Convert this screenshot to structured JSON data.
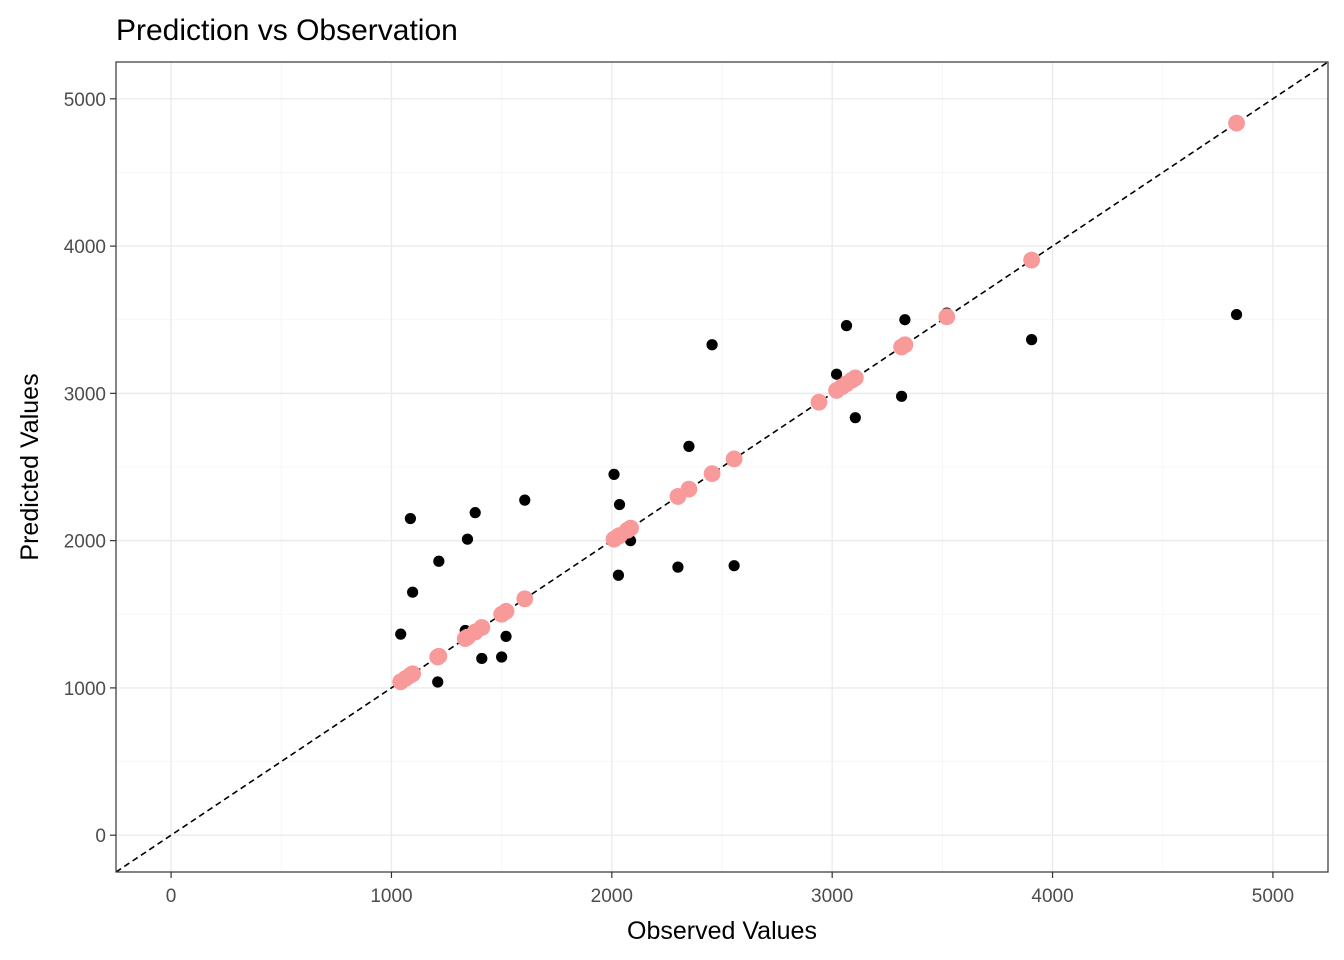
{
  "chart_data": {
    "type": "scatter",
    "title": "Prediction vs Observation",
    "xlabel": "Observed Values",
    "ylabel": "Predicted Values",
    "xlim": [
      -250,
      5250
    ],
    "ylim": [
      -250,
      5250
    ],
    "x_ticks": [
      0,
      1000,
      2000,
      3000,
      4000,
      5000
    ],
    "y_ticks": [
      0,
      1000,
      2000,
      3000,
      4000,
      5000
    ],
    "x_tick_labels": [
      "0",
      "1000",
      "2000",
      "3000",
      "4000",
      "5000"
    ],
    "y_tick_labels": [
      "0",
      "1000",
      "2000",
      "3000",
      "4000",
      "5000"
    ],
    "grid": true,
    "legend": "none",
    "reference_line": {
      "slope": 1,
      "intercept": 0,
      "style": "dashed",
      "color": "#000000"
    },
    "series": [
      {
        "color": "#000000",
        "points": [
          [
            1042,
            1365
          ],
          [
            1086,
            2150
          ],
          [
            1096,
            1650
          ],
          [
            1210,
            1040
          ],
          [
            1215,
            1860
          ],
          [
            1335,
            1390
          ],
          [
            1345,
            2010
          ],
          [
            1380,
            2190
          ],
          [
            1410,
            1200
          ],
          [
            1500,
            1210
          ],
          [
            1520,
            1350
          ],
          [
            1605,
            2275
          ],
          [
            2010,
            2450
          ],
          [
            2030,
            1765
          ],
          [
            2035,
            2245
          ],
          [
            2085,
            2000
          ],
          [
            2300,
            1820
          ],
          [
            2350,
            2640
          ],
          [
            2455,
            3330
          ],
          [
            2555,
            1830
          ],
          [
            3020,
            3130
          ],
          [
            3065,
            3460
          ],
          [
            3105,
            2835
          ],
          [
            3315,
            2980
          ],
          [
            3330,
            3500
          ],
          [
            3520,
            3545
          ],
          [
            3905,
            3365
          ],
          [
            4835,
            3535
          ]
        ]
      },
      {
        "color": "#f8999a",
        "points": [
          [
            1042,
            1042
          ],
          [
            1065,
            1065
          ],
          [
            1086,
            1086
          ],
          [
            1096,
            1096
          ],
          [
            1210,
            1210
          ],
          [
            1215,
            1215
          ],
          [
            1335,
            1335
          ],
          [
            1345,
            1345
          ],
          [
            1380,
            1380
          ],
          [
            1410,
            1410
          ],
          [
            1500,
            1500
          ],
          [
            1520,
            1520
          ],
          [
            1605,
            1605
          ],
          [
            2010,
            2010
          ],
          [
            2030,
            2030
          ],
          [
            2035,
            2035
          ],
          [
            2070,
            2070
          ],
          [
            2085,
            2085
          ],
          [
            2300,
            2300
          ],
          [
            2350,
            2350
          ],
          [
            2455,
            2455
          ],
          [
            2555,
            2555
          ],
          [
            2940,
            2940
          ],
          [
            3020,
            3020
          ],
          [
            3045,
            3045
          ],
          [
            3065,
            3065
          ],
          [
            3090,
            3090
          ],
          [
            3105,
            3105
          ],
          [
            3315,
            3315
          ],
          [
            3330,
            3330
          ],
          [
            3520,
            3520
          ],
          [
            3905,
            3905
          ],
          [
            4835,
            4835
          ]
        ]
      }
    ]
  }
}
